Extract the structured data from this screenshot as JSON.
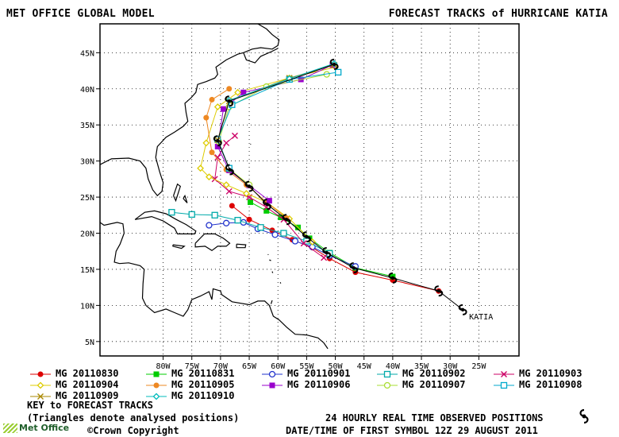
{
  "header": {
    "left_title": "MET OFFICE GLOBAL MODEL",
    "right_title": "FORECAST TRACKS of HURRICANE KATIA"
  },
  "map": {
    "lon_range": [
      -91,
      -18
    ],
    "lat_range": [
      3,
      49
    ],
    "lon_ticks": [
      -80,
      -75,
      -70,
      -65,
      -60,
      -55,
      -50,
      -45,
      -40,
      -35,
      -30,
      -25
    ],
    "lon_labels": [
      "80W",
      "75W",
      "70W",
      "65W",
      "60W",
      "55W",
      "50W",
      "45W",
      "40W",
      "35W",
      "30W",
      "25W"
    ],
    "lat_ticks": [
      5,
      10,
      15,
      20,
      25,
      30,
      35,
      40,
      45
    ],
    "lat_labels": [
      "5N",
      "10N",
      "15N",
      "20N",
      "25N",
      "30N",
      "35N",
      "40N",
      "45N"
    ],
    "storm_label": "KATIA",
    "observed_track": [
      [
        -27.8,
        9.4
      ],
      [
        -32.0,
        12.0
      ],
      [
        -40.0,
        13.8
      ],
      [
        -46.8,
        15.2
      ],
      [
        -51.5,
        17.3
      ],
      [
        -55.0,
        19.5
      ],
      [
        -58.5,
        21.9
      ],
      [
        -61.9,
        24.0
      ],
      [
        -65.0,
        26.5
      ],
      [
        -68.4,
        28.8
      ],
      [
        -70.5,
        32.8
      ],
      [
        -68.5,
        38.3
      ],
      [
        -50.2,
        43.4
      ]
    ],
    "land_color": "#ffffff",
    "grid_color": "#000000"
  },
  "forecast_tracks": [
    {
      "name": "MG 20110830",
      "color": "#dd0000",
      "marker": "circle-filled",
      "points": [
        [
          -32,
          12
        ],
        [
          -40,
          13.5
        ],
        [
          -46.5,
          14.6
        ],
        [
          -51,
          16.5
        ],
        [
          -54,
          18.0
        ],
        [
          -57.5,
          19.1
        ],
        [
          -61,
          20.4
        ],
        [
          -65,
          21.9
        ],
        [
          -68,
          23.8
        ]
      ]
    },
    {
      "name": "MG 20110831",
      "color": "#00cc00",
      "marker": "square-filled",
      "points": [
        [
          -40,
          14
        ],
        [
          -46.5,
          15.2
        ],
        [
          -51,
          17.3
        ],
        [
          -54.5,
          19.3
        ],
        [
          -56.5,
          20.8
        ],
        [
          -59.5,
          22.2
        ],
        [
          -62,
          23.1
        ],
        [
          -64.8,
          24.3
        ]
      ]
    },
    {
      "name": "MG 20110901",
      "color": "#2233cc",
      "marker": "circle-open",
      "points": [
        [
          -46.5,
          15.4
        ],
        [
          -51,
          16.9
        ],
        [
          -54,
          18.1
        ],
        [
          -57,
          18.9
        ],
        [
          -60.5,
          19.8
        ],
        [
          -63.5,
          20.6
        ],
        [
          -66,
          21.5
        ],
        [
          -69,
          21.4
        ],
        [
          -72,
          21.1
        ]
      ]
    },
    {
      "name": "MG 20110902",
      "color": "#00aaaa",
      "marker": "square-open",
      "points": [
        [
          -51,
          17.2
        ],
        [
          -55,
          18.9
        ],
        [
          -59,
          20.0
        ],
        [
          -63,
          20.8
        ],
        [
          -67,
          21.8
        ],
        [
          -71,
          22.5
        ],
        [
          -75,
          22.6
        ],
        [
          -78.5,
          22.9
        ]
      ]
    },
    {
      "name": "MG 20110903",
      "color": "#cc0066",
      "marker": "x",
      "points": [
        [
          -52,
          16.6
        ],
        [
          -55.5,
          18.6
        ],
        [
          -59,
          21.9
        ],
        [
          -62,
          23.6
        ],
        [
          -65,
          25.0
        ],
        [
          -68.5,
          25.8
        ],
        [
          -71,
          27.5
        ],
        [
          -70.5,
          30.5
        ],
        [
          -69,
          32.5
        ],
        [
          -67.5,
          33.5
        ]
      ]
    },
    {
      "name": "MG 20110904",
      "color": "#ddcc00",
      "marker": "diamond",
      "points": [
        [
          -54,
          18.8
        ],
        [
          -58,
          22.0
        ],
        [
          -62,
          24.3
        ],
        [
          -65.5,
          25.5
        ],
        [
          -69,
          26.7
        ],
        [
          -72,
          27.8
        ],
        [
          -73.5,
          29.0
        ],
        [
          -72.5,
          32.5
        ],
        [
          -70.5,
          37.5
        ],
        [
          -67,
          39.5
        ],
        [
          -58,
          41.5
        ],
        [
          -50,
          43.0
        ]
      ]
    },
    {
      "name": "MG 20110905",
      "color": "#ee8822",
      "marker": "circle-filled",
      "points": [
        [
          -58.5,
          22.1
        ],
        [
          -62,
          24.3
        ],
        [
          -65.5,
          26.7
        ],
        [
          -69,
          28.8
        ],
        [
          -71.5,
          31.2
        ],
        [
          -72.5,
          36.0
        ],
        [
          -71.5,
          38.5
        ],
        [
          -68.5,
          40.0
        ]
      ]
    },
    {
      "name": "MG 20110906",
      "color": "#9900cc",
      "marker": "square-filled",
      "points": [
        [
          -61.5,
          24.5
        ],
        [
          -65,
          26.6
        ],
        [
          -68.5,
          28.7
        ],
        [
          -70.5,
          32.0
        ],
        [
          -69.5,
          37.2
        ],
        [
          -66,
          39.5
        ],
        [
          -56,
          41.3
        ],
        [
          -50.5,
          43.3
        ]
      ]
    },
    {
      "name": "MG 20110907",
      "color": "#aadd33",
      "marker": "circle-open",
      "points": [
        [
          -65,
          26.7
        ],
        [
          -68.5,
          28.9
        ],
        [
          -70.3,
          32.7
        ],
        [
          -68.5,
          37.5
        ],
        [
          -62,
          40.3
        ],
        [
          -51.5,
          42.0
        ]
      ]
    },
    {
      "name": "MG 20110908",
      "color": "#00aacc",
      "marker": "square-open",
      "points": [
        [
          -68.5,
          29.0
        ],
        [
          -70.5,
          33.0
        ],
        [
          -68,
          37.8
        ],
        [
          -58,
          41.3
        ],
        [
          -49.5,
          42.3
        ]
      ]
    },
    {
      "name": "MG 20110909",
      "color": "#aa8800",
      "marker": "x",
      "points": [
        [
          -70.5,
          32.9
        ],
        [
          -68.5,
          38.3
        ],
        [
          -58,
          41.5
        ],
        [
          -50.2,
          43.3
        ]
      ]
    },
    {
      "name": "MG 20110910",
      "color": "#00bbbb",
      "marker": "diamond",
      "points": [
        [
          -68.5,
          38.4
        ],
        [
          -58,
          41.4
        ],
        [
          -50.2,
          43.5
        ]
      ]
    }
  ],
  "footer": {
    "key_title": "KEY to FORECAST TRACKS",
    "triangles_note": "(Triangles denote analysed positions)",
    "observed_note": "24 HOURLY REAL TIME OBSERVED POSITIONS",
    "date_note": "DATE/TIME OF FIRST SYMBOL 12Z 29 AUGUST 2011",
    "copyright": "©Crown Copyright",
    "logo_text": "Met Office"
  }
}
